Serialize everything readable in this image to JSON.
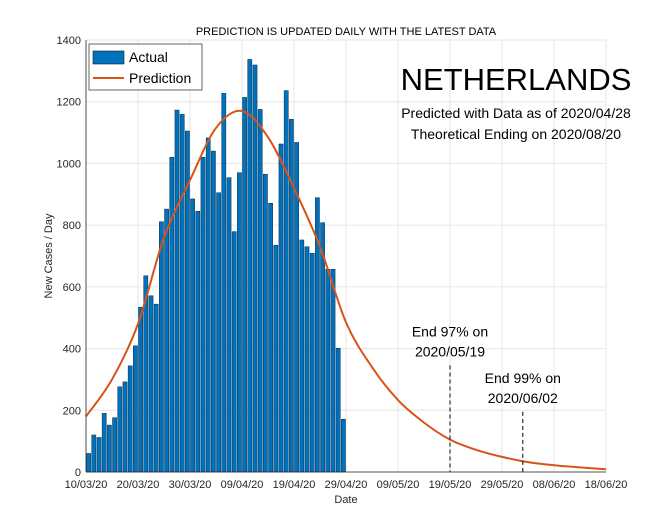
{
  "chart_data": {
    "type": "bar+line",
    "title": "PREDICTION IS UPDATED DAILY WITH THE LATEST DATA",
    "xlabel": "Date",
    "ylabel": "New Cases / Day",
    "ylim": [
      0,
      1400
    ],
    "xlim": [
      "10/03/20",
      "18/06/20"
    ],
    "grid": true,
    "legend_position": "top-left",
    "yticks": [
      "0",
      "200",
      "400",
      "600",
      "800",
      "1000",
      "1200",
      "1400"
    ],
    "xticks": [
      "10/03/20",
      "20/03/20",
      "30/03/20",
      "09/04/20",
      "19/04/20",
      "29/04/20",
      "09/05/20",
      "19/05/20",
      "29/05/20",
      "08/06/20",
      "18/06/20"
    ],
    "country": "NETHERLANDS",
    "subtitle_lines": [
      "Predicted with Data as of 2020/04/28",
      "Theoretical Ending on 2020/08/20"
    ],
    "series": [
      {
        "name": "Actual",
        "type": "bar",
        "color": "#0072BD",
        "start_date": "10/03/20",
        "values": [
          60,
          120,
          112,
          190,
          152,
          176,
          276,
          292,
          344,
          409,
          534,
          636,
          571,
          544,
          811,
          852,
          1020,
          1173,
          1159,
          1105,
          885,
          845,
          1020,
          1083,
          1040,
          905,
          1227,
          954,
          779,
          970,
          1214,
          1337,
          1319,
          1175,
          965,
          871,
          735,
          1063,
          1236,
          1143,
          1068,
          752,
          730,
          709,
          889,
          808,
          657,
          657,
          401,
          171
        ]
      },
      {
        "name": "Prediction",
        "type": "line",
        "color": "#D95319",
        "x": [
          "10/03/20",
          "15/03/20",
          "20/03/20",
          "25/03/20",
          "30/03/20",
          "04/04/20",
          "09/04/20",
          "14/04/20",
          "19/04/20",
          "24/04/20",
          "29/04/20",
          "04/05/20",
          "09/05/20",
          "14/05/20",
          "19/05/20",
          "24/05/20",
          "29/05/20",
          "03/06/20",
          "08/06/20",
          "13/06/20",
          "18/06/20"
        ],
        "values": [
          180,
          300,
          480,
          760,
          946,
          1115,
          1170,
          1085,
          920,
          730,
          485,
          340,
          233,
          160,
          105,
          72,
          49,
          32,
          22,
          15,
          9
        ]
      }
    ],
    "annotations": [
      {
        "date": "19/05/20",
        "line_top": 345,
        "text_lines": [
          "End 97% on",
          "2020/05/19"
        ]
      },
      {
        "date": "02/06/20",
        "line_top": 195,
        "text_lines": [
          "End 99% on",
          "2020/06/02"
        ]
      }
    ]
  }
}
